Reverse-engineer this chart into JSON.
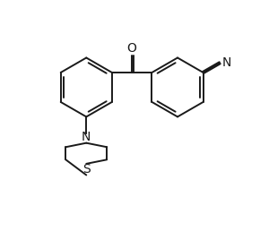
{
  "background_color": "#ffffff",
  "line_color": "#1a1a1a",
  "line_width": 1.4,
  "font_size": 10,
  "figsize": [
    2.9,
    2.58
  ],
  "dpi": 100,
  "xlim": [
    0.0,
    10.0
  ],
  "ylim": [
    0.5,
    9.5
  ]
}
